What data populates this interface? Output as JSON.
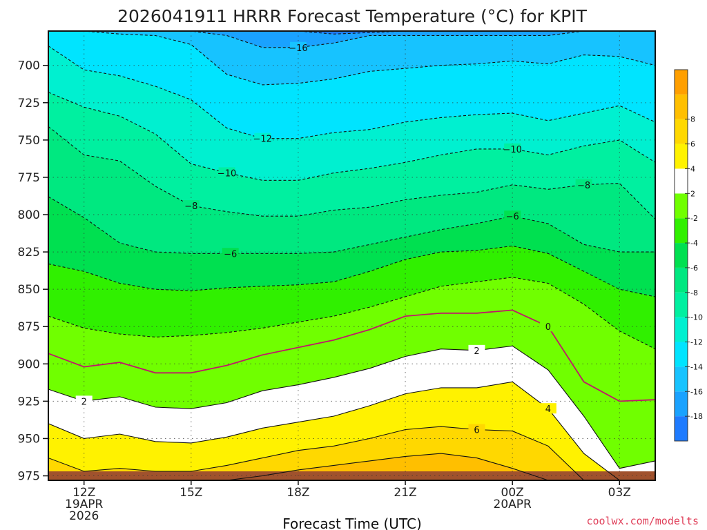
{
  "chart_data": {
    "type": "contour",
    "title": "2026041911 HRRR Forecast Temperature (°C) for KPIT",
    "xlabel": "Forecast Time (UTC)",
    "ylabel": "",
    "credit": "coolwx.com/modelts",
    "x_range_hours": [
      0,
      17
    ],
    "y_range_hpa": [
      978,
      677
    ],
    "y_ticks": [
      700,
      725,
      750,
      775,
      800,
      825,
      850,
      875,
      900,
      925,
      950,
      975
    ],
    "x_ticks": [
      {
        "hour": 1,
        "lines": [
          "12Z",
          "19APR",
          "2026"
        ]
      },
      {
        "hour": 4,
        "lines": [
          "15Z"
        ]
      },
      {
        "hour": 7,
        "lines": [
          "18Z"
        ]
      },
      {
        "hour": 10,
        "lines": [
          "21Z"
        ]
      },
      {
        "hour": 13,
        "lines": [
          "00Z",
          "20APR"
        ]
      },
      {
        "hour": 16,
        "lines": [
          "03Z"
        ]
      }
    ],
    "colorbar": {
      "levels": [
        -20,
        -18,
        -16,
        -14,
        -12,
        -10,
        -8,
        -6,
        -4,
        -2,
        2,
        4,
        6,
        8,
        10
      ],
      "colors": [
        "#1e7bff",
        "#1aa2ff",
        "#17c3ff",
        "#00e4ff",
        "#00f0d0",
        "#00f0a0",
        "#00e880",
        "#00e050",
        "#30f000",
        "#70ff00",
        "#ffffff",
        "#fff200",
        "#ffd800",
        "#ffbf00",
        "#ff9f00"
      ],
      "tick_labels": [
        "-18",
        "-16",
        "-14",
        "-12",
        "-10",
        "-8",
        "-6",
        "-4",
        "-2",
        "2",
        "4",
        "6",
        "8"
      ]
    },
    "hours": [
      0,
      1,
      2,
      3,
      4,
      5,
      6,
      7,
      8,
      9,
      10,
      11,
      12,
      13,
      14,
      15,
      16,
      17
    ],
    "contours": [
      {
        "value": -18,
        "p": [
          677,
          677,
          677,
          677,
          677,
          677,
          677,
          677,
          679,
          678,
          677,
          677,
          677,
          677,
          677,
          677,
          677,
          677
        ]
      },
      {
        "value": -16,
        "p": [
          677,
          677,
          677,
          677,
          677,
          680,
          688,
          688,
          685,
          680,
          680,
          680,
          680,
          680,
          680,
          677,
          677,
          677
        ]
      },
      {
        "value": -14,
        "p": [
          677,
          677,
          679,
          680,
          686,
          706,
          713,
          712,
          709,
          704,
          702,
          700,
          699,
          697,
          699,
          693,
          694,
          700
        ]
      },
      {
        "value": -12,
        "p": [
          687,
          703,
          707,
          714,
          723,
          742,
          749,
          749,
          745,
          743,
          738,
          735,
          733,
          732,
          737,
          732,
          727,
          738
        ]
      },
      {
        "value": -10,
        "p": [
          718,
          728,
          734,
          746,
          766,
          772,
          777,
          777,
          772,
          769,
          765,
          760,
          756,
          756,
          760,
          754,
          750,
          765
        ]
      },
      {
        "value": -8,
        "p": [
          741,
          760,
          764,
          781,
          794,
          798,
          801,
          801,
          797,
          795,
          790,
          787,
          785,
          780,
          783,
          780,
          779,
          803
        ]
      },
      {
        "value": -6,
        "p": [
          788,
          802,
          819,
          825,
          826,
          826,
          826,
          826,
          825,
          820,
          815,
          810,
          806,
          801,
          806,
          820,
          825,
          825
        ]
      },
      {
        "value": -4,
        "p": [
          833,
          838,
          846,
          850,
          851,
          849,
          848,
          847,
          845,
          838,
          830,
          825,
          824,
          821,
          826,
          838,
          850,
          855
        ]
      },
      {
        "value": -2,
        "p": [
          868,
          876,
          880,
          882,
          881,
          879,
          876,
          872,
          868,
          862,
          855,
          848,
          845,
          842,
          846,
          860,
          878,
          890
        ]
      },
      {
        "value": 0,
        "p": [
          893,
          902,
          899,
          906,
          906,
          901,
          894,
          889,
          884,
          877,
          868,
          866,
          866,
          864,
          875,
          912,
          925,
          924
        ]
      },
      {
        "value": 2,
        "p": [
          917,
          925,
          922,
          929,
          930,
          926,
          918,
          914,
          909,
          903,
          895,
          890,
          891,
          888,
          904,
          935,
          970,
          965
        ]
      },
      {
        "value": 4,
        "p": [
          940,
          950,
          947,
          952,
          953,
          949,
          943,
          939,
          935,
          928,
          920,
          916,
          916,
          912,
          930,
          960,
          978,
          978
        ]
      },
      {
        "value": 6,
        "p": [
          963,
          972,
          970,
          972,
          972,
          968,
          963,
          958,
          955,
          950,
          944,
          942,
          944,
          945,
          955,
          978,
          978,
          978
        ]
      },
      {
        "value": 8,
        "p": [
          978,
          978,
          978,
          978,
          978,
          978,
          975,
          971,
          968,
          965,
          962,
          960,
          963,
          970,
          978,
          978,
          978,
          978
        ]
      }
    ],
    "line_labels": [
      {
        "value": -16,
        "text": "−16",
        "hour": 7.0
      },
      {
        "value": -12,
        "text": "−12",
        "hour": 6.0
      },
      {
        "value": -10,
        "text": "−10",
        "hour": 5.0
      },
      {
        "value": -10,
        "text": "−10",
        "hour": 13.0
      },
      {
        "value": -8,
        "text": "−8",
        "hour": 15.0
      },
      {
        "value": -8,
        "text": "−8",
        "hour": 4.0
      },
      {
        "value": -6,
        "text": "−6",
        "hour": 5.1
      },
      {
        "value": -6,
        "text": "−6",
        "hour": 13.0
      },
      {
        "value": 0,
        "text": "0",
        "hour": 14.0
      },
      {
        "value": 2,
        "text": "2",
        "hour": 1.0
      },
      {
        "value": 2,
        "text": "2",
        "hour": 12.0
      },
      {
        "value": 4,
        "text": "4",
        "hour": 14.0
      },
      {
        "value": 6,
        "text": "6",
        "hour": 12.0
      }
    ],
    "surface_color": "#a0522d",
    "freezing_line_color": "#c0186a"
  }
}
